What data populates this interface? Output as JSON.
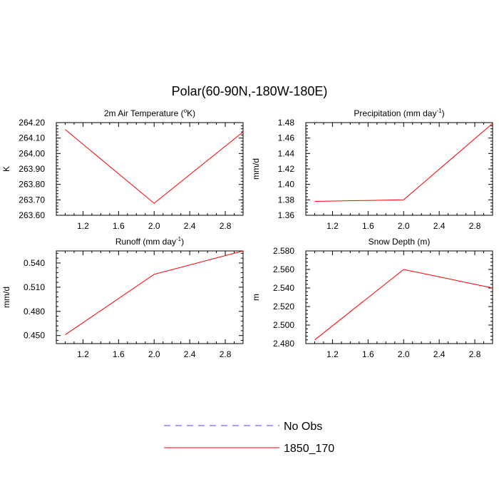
{
  "figure_title": "Polar(60-90N,-180W-180E)",
  "colors": {
    "obs": "#4a4ae0",
    "model": "#ff0000",
    "axis": "#000000"
  },
  "legend": [
    {
      "label": "No Obs",
      "style": "dashed",
      "color": "#4a4ae0"
    },
    {
      "label": "1850_170",
      "style": "solid",
      "color": "#ff0000"
    }
  ],
  "chart_data": [
    {
      "type": "line",
      "title": "2m Air Temperature (",
      "title_sup": "o",
      "title_after": "K)",
      "ylabel": "K",
      "xlabel": "",
      "xlim": [
        0.9,
        3.0
      ],
      "ylim": [
        263.6,
        264.2
      ],
      "xticks": [
        1.2,
        1.6,
        2.0,
        2.4,
        2.8
      ],
      "xtick_labels": [
        "1.2",
        "1.6",
        "2.0",
        "2.4",
        "2.8"
      ],
      "yticks": [
        263.6,
        263.7,
        263.8,
        263.9,
        264.0,
        264.1,
        264.2
      ],
      "ytick_labels": [
        "263.60",
        "263.70",
        "263.80",
        "263.90",
        "264.00",
        "264.10",
        "264.20"
      ],
      "series": [
        {
          "name": "1850_170",
          "x": [
            1.0,
            2.0,
            3.0
          ],
          "values": [
            264.155,
            263.678,
            264.14
          ]
        }
      ]
    },
    {
      "type": "line",
      "title": "Precipitation (mm day",
      "title_sup": "-1",
      "title_after": ")",
      "ylabel": "mm/d",
      "xlabel": "",
      "xlim": [
        0.9,
        3.0
      ],
      "ylim": [
        1.36,
        1.48
      ],
      "xticks": [
        1.2,
        1.6,
        2.0,
        2.4,
        2.8
      ],
      "xtick_labels": [
        "1.2",
        "1.6",
        "2.0",
        "2.4",
        "2.8"
      ],
      "yticks": [
        1.36,
        1.38,
        1.4,
        1.42,
        1.44,
        1.46,
        1.48
      ],
      "ytick_labels": [
        "1.36",
        "1.38",
        "1.40",
        "1.42",
        "1.44",
        "1.46",
        "1.48"
      ],
      "series": [
        {
          "name": "1850_170",
          "x": [
            1.0,
            2.0,
            3.0
          ],
          "values": [
            1.378,
            1.38,
            1.479
          ]
        }
      ]
    },
    {
      "type": "line",
      "title": "Runoff (mm day",
      "title_sup": "-1",
      "title_after": ")",
      "ylabel": "mm/d",
      "xlabel": "",
      "xlim": [
        0.9,
        3.0
      ],
      "ylim": [
        0.44,
        0.555
      ],
      "xticks": [
        1.2,
        1.6,
        2.0,
        2.4,
        2.8
      ],
      "xtick_labels": [
        "1.2",
        "1.6",
        "2.0",
        "2.4",
        "2.8"
      ],
      "yticks": [
        0.45,
        0.48,
        0.51,
        0.54
      ],
      "ytick_labels": [
        "0.450",
        "0.480",
        "0.510",
        "0.540"
      ],
      "series": [
        {
          "name": "1850_170",
          "x": [
            1.0,
            2.0,
            3.0
          ],
          "values": [
            0.451,
            0.526,
            0.555
          ]
        }
      ]
    },
    {
      "type": "line",
      "title": "Snow Depth (m)",
      "title_sup": "",
      "title_after": "",
      "ylabel": "m",
      "xlabel": "",
      "xlim": [
        0.9,
        3.0
      ],
      "ylim": [
        2.48,
        2.58
      ],
      "xticks": [
        1.2,
        1.6,
        2.0,
        2.4,
        2.8
      ],
      "xtick_labels": [
        "1.2",
        "1.6",
        "2.0",
        "2.4",
        "2.8"
      ],
      "yticks": [
        2.48,
        2.5,
        2.52,
        2.54,
        2.56,
        2.58
      ],
      "ytick_labels": [
        "2.480",
        "2.500",
        "2.520",
        "2.540",
        "2.560",
        "2.580"
      ],
      "series": [
        {
          "name": "1850_170",
          "x": [
            1.0,
            2.0,
            3.0
          ],
          "values": [
            2.484,
            2.56,
            2.54
          ]
        }
      ]
    }
  ]
}
